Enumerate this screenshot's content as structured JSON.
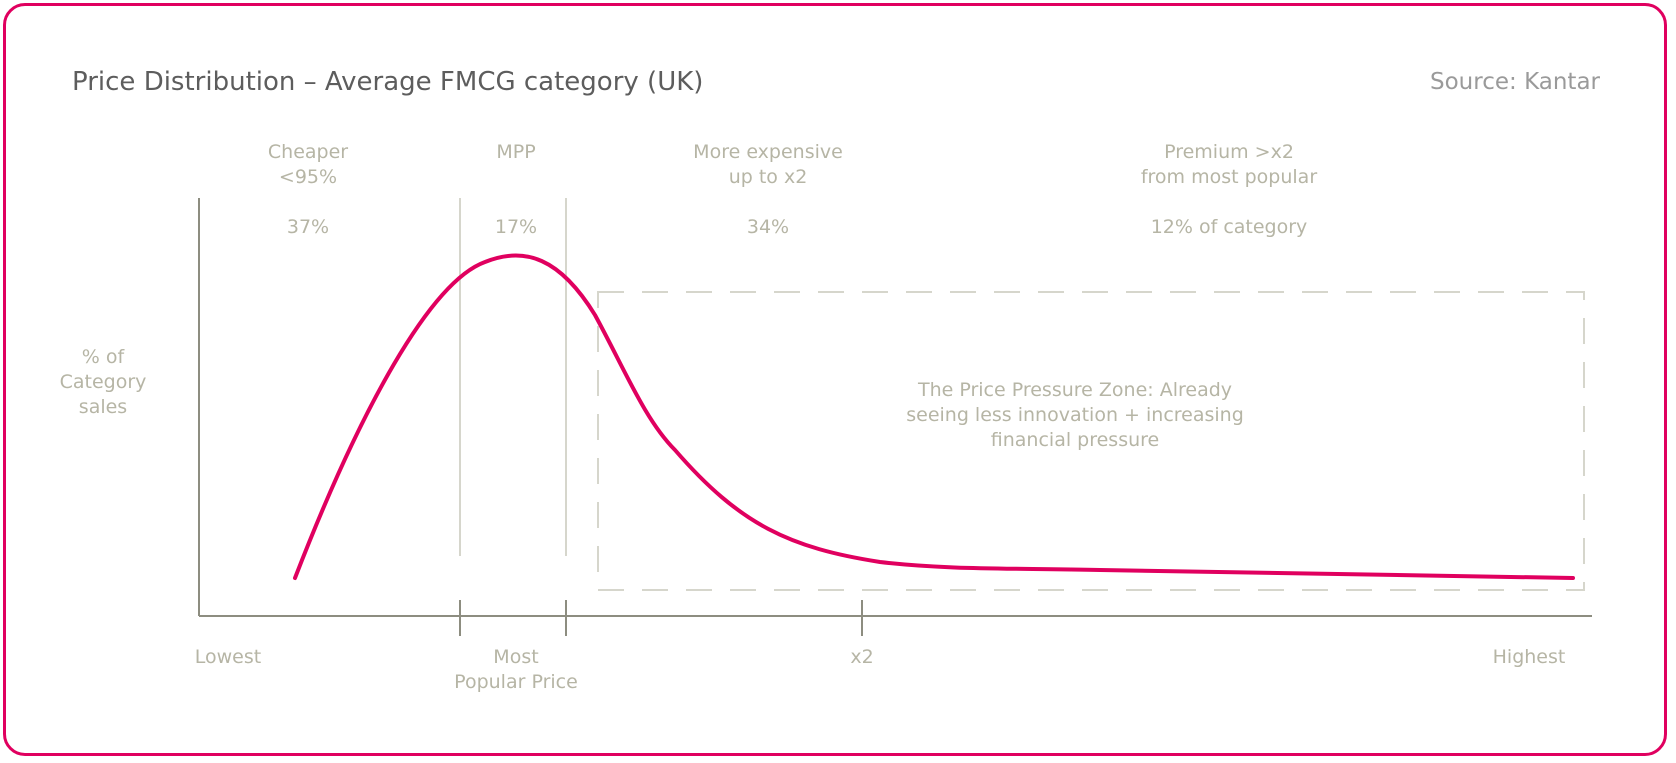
{
  "header": {
    "title": "Price Distribution – Average FMCG category (UK)",
    "source": "Source: Kantar"
  },
  "colors": {
    "curve": "#e0005f",
    "text": "#b6b5a5",
    "axis": "#8d8d80",
    "divider": "#d6d6cc",
    "frame": "#e0005f"
  },
  "chart_data": {
    "type": "line",
    "title": "Price Distribution – Average FMCG category (UK)",
    "ylabel": "% of\nCategory\nsales",
    "x_tick_labels": [
      {
        "key": "lowest",
        "label": "Lowest"
      },
      {
        "key": "mpp",
        "label": "Most\nPopular Price"
      },
      {
        "key": "x2",
        "label": "x2"
      },
      {
        "key": "highest",
        "label": "Highest"
      }
    ],
    "segments": [
      {
        "name": "Cheaper\n<95%",
        "share": "37%"
      },
      {
        "name": "MPP",
        "share": "17%"
      },
      {
        "name": "More expensive\nup to x2",
        "share": "34%"
      },
      {
        "name": "Premium >x2\nfrom most popular",
        "share": "12% of category"
      }
    ],
    "annotation": "The Price Pressure Zone: Already\nseeing less innovation + increasing\nfinancial pressure",
    "curve_shape": "right-skewed distribution peaking near the most popular price, long flat tail to the highest price",
    "grid": false,
    "legend": "none"
  }
}
